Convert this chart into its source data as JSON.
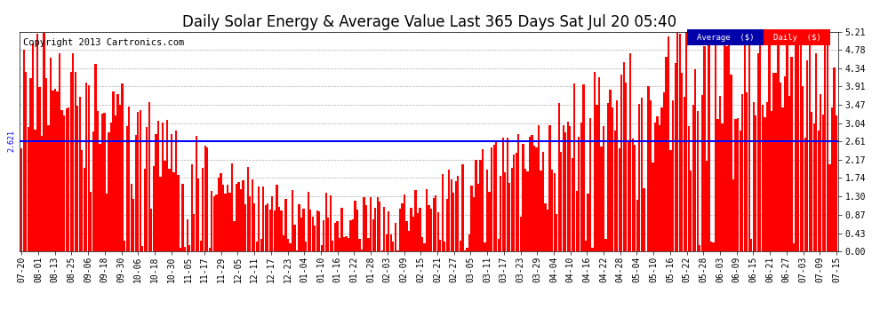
{
  "title": "Daily Solar Energy & Average Value Last 365 Days Sat Jul 20 05:40",
  "copyright": "Copyright 2013 Cartronics.com",
  "average_value": 2.621,
  "average_label": "Average  ($)",
  "daily_label": "Daily  ($)",
  "ylim": [
    0.0,
    5.21
  ],
  "yticks": [
    0.0,
    0.43,
    0.87,
    1.3,
    1.74,
    2.17,
    2.61,
    3.04,
    3.47,
    3.91,
    4.34,
    4.78,
    5.21
  ],
  "bar_color": "#FF0000",
  "average_line_color": "#0000FF",
  "background_color": "#FFFFFF",
  "grid_color": "#999999",
  "legend_avg_bg": "#0000AA",
  "legend_daily_bg": "#FF0000",
  "legend_text_color": "#FFFFFF",
  "title_fontsize": 12,
  "copyright_fontsize": 7.5,
  "tick_fontsize": 7,
  "num_bars": 365,
  "x_tick_labels": [
    "07-20",
    "08-01",
    "08-13",
    "08-25",
    "09-06",
    "09-18",
    "09-30",
    "10-06",
    "10-18",
    "10-30",
    "11-05",
    "11-17",
    "11-29",
    "12-05",
    "12-11",
    "12-17",
    "12-23",
    "01-04",
    "01-10",
    "01-16",
    "01-22",
    "01-28",
    "02-03",
    "02-09",
    "02-15",
    "02-21",
    "02-27",
    "03-05",
    "03-11",
    "03-17",
    "03-23",
    "03-29",
    "04-04",
    "04-10",
    "04-16",
    "04-22",
    "04-28",
    "05-04",
    "05-10",
    "05-16",
    "05-22",
    "05-28",
    "06-03",
    "06-09",
    "06-15",
    "06-21",
    "06-27",
    "07-03",
    "07-09",
    "07-15"
  ]
}
